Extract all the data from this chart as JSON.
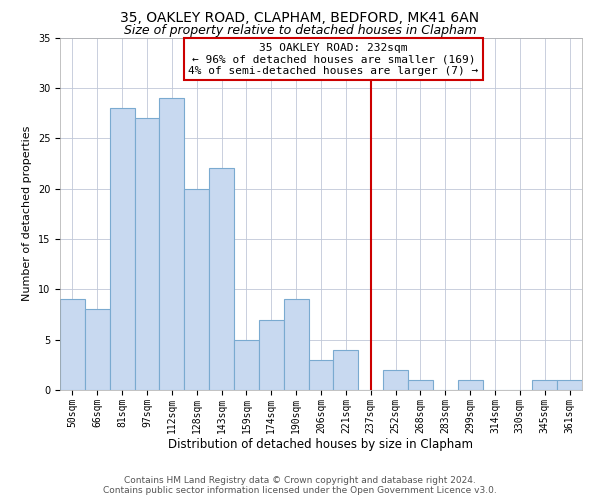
{
  "title": "35, OAKLEY ROAD, CLAPHAM, BEDFORD, MK41 6AN",
  "subtitle": "Size of property relative to detached houses in Clapham",
  "xlabel": "Distribution of detached houses by size in Clapham",
  "ylabel": "Number of detached properties",
  "bar_labels": [
    "50sqm",
    "66sqm",
    "81sqm",
    "97sqm",
    "112sqm",
    "128sqm",
    "143sqm",
    "159sqm",
    "174sqm",
    "190sqm",
    "206sqm",
    "221sqm",
    "237sqm",
    "252sqm",
    "268sqm",
    "283sqm",
    "299sqm",
    "314sqm",
    "330sqm",
    "345sqm",
    "361sqm"
  ],
  "bar_values": [
    9,
    8,
    28,
    27,
    29,
    20,
    22,
    5,
    7,
    9,
    3,
    4,
    0,
    2,
    1,
    0,
    1,
    0,
    0,
    1,
    1
  ],
  "bar_color": "#c8d9f0",
  "bar_edgecolor": "#7aaad0",
  "vline_x": 12,
  "vline_color": "#cc0000",
  "ylim": [
    0,
    35
  ],
  "yticks": [
    0,
    5,
    10,
    15,
    20,
    25,
    30,
    35
  ],
  "annotation_title": "35 OAKLEY ROAD: 232sqm",
  "annotation_line1": "← 96% of detached houses are smaller (169)",
  "annotation_line2": "4% of semi-detached houses are larger (7) →",
  "annotation_box_color": "#ffffff",
  "annotation_box_edgecolor": "#cc0000",
  "footer_line1": "Contains HM Land Registry data © Crown copyright and database right 2024.",
  "footer_line2": "Contains public sector information licensed under the Open Government Licence v3.0.",
  "background_color": "#ffffff",
  "grid_color": "#c0c8d8",
  "title_fontsize": 10,
  "subtitle_fontsize": 9,
  "xlabel_fontsize": 8.5,
  "ylabel_fontsize": 8,
  "tick_fontsize": 7,
  "annotation_fontsize": 8,
  "footer_fontsize": 6.5
}
